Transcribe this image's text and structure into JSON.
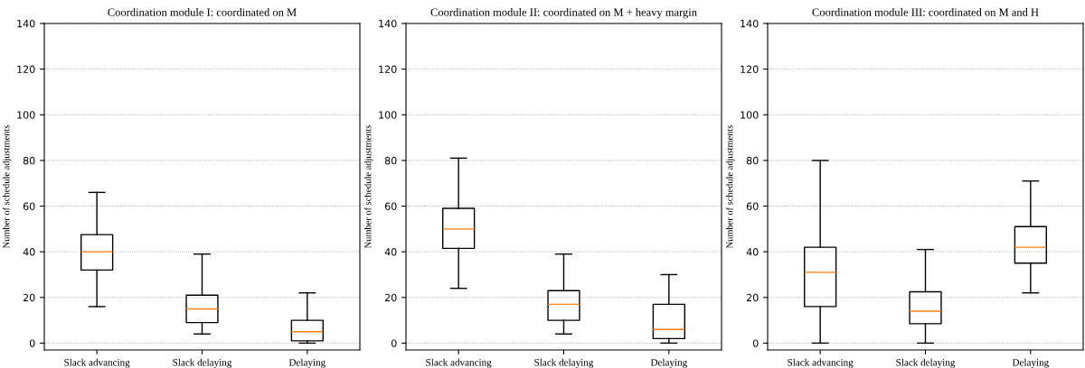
{
  "chart_data": [
    {
      "type": "box",
      "title": "Coordination module I: coordinated on M",
      "ylabel": "Number of schedule adjustments",
      "categories": [
        "Slack advancing",
        "Slack delaying",
        "Delaying"
      ],
      "boxes": [
        {
          "low": 16,
          "q1": 32,
          "median": 40,
          "q3": 47.5,
          "high": 66
        },
        {
          "low": 4,
          "q1": 9,
          "median": 15,
          "q3": 21,
          "high": 39
        },
        {
          "low": 0,
          "q1": 1,
          "median": 5,
          "q3": 10,
          "high": 22
        }
      ],
      "ylim": [
        -3,
        140
      ],
      "yticks": [
        0,
        20,
        40,
        60,
        80,
        100,
        120,
        140
      ],
      "grid": "y"
    },
    {
      "type": "box",
      "title": "Coordination module II: coordinated on M + heavy margin",
      "ylabel": "Number of schedule adjustments",
      "categories": [
        "Slack advancing",
        "Slack delaying",
        "Delaying"
      ],
      "boxes": [
        {
          "low": 24,
          "q1": 41.5,
          "median": 50,
          "q3": 59,
          "high": 81
        },
        {
          "low": 4,
          "q1": 10,
          "median": 17,
          "q3": 23,
          "high": 39
        },
        {
          "low": 0,
          "q1": 2,
          "median": 6,
          "q3": 17,
          "high": 30
        }
      ],
      "ylim": [
        -3,
        140
      ],
      "yticks": [
        0,
        20,
        40,
        60,
        80,
        100,
        120,
        140
      ],
      "grid": "y"
    },
    {
      "type": "box",
      "title": "Coordination module III: coordinated on M and H",
      "ylabel": "Number of schedule adjustments",
      "categories": [
        "Slack advancing",
        "Slack delaying",
        "Delaying"
      ],
      "boxes": [
        {
          "low": 0,
          "q1": 16,
          "median": 31,
          "q3": 42,
          "high": 80
        },
        {
          "low": 0,
          "q1": 8.5,
          "median": 14,
          "q3": 22.5,
          "high": 41
        },
        {
          "low": 22,
          "q1": 35,
          "median": 42,
          "q3": 51,
          "high": 71
        }
      ],
      "ylim": [
        -3,
        140
      ],
      "yticks": [
        0,
        20,
        40,
        60,
        80,
        100,
        120,
        140
      ],
      "grid": "y"
    }
  ]
}
